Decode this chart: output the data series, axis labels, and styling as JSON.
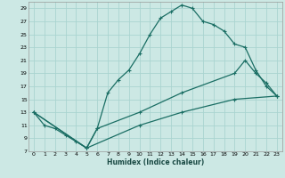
{
  "title": "",
  "xlabel": "Humidex (Indice chaleur)",
  "bg_color": "#cce8e4",
  "line_color": "#1a6e64",
  "grid_color": "#aad4d0",
  "xlim": [
    -0.5,
    23.5
  ],
  "ylim": [
    7,
    30
  ],
  "xticks": [
    0,
    1,
    2,
    3,
    4,
    5,
    6,
    7,
    8,
    9,
    10,
    11,
    12,
    13,
    14,
    15,
    16,
    17,
    18,
    19,
    20,
    21,
    22,
    23
  ],
  "yticks": [
    7,
    9,
    11,
    13,
    15,
    17,
    19,
    21,
    23,
    25,
    27,
    29
  ],
  "line1_x": [
    0,
    1,
    2,
    3,
    4,
    5,
    6,
    7,
    8,
    9,
    10,
    11,
    12,
    13,
    14,
    15,
    16,
    17,
    18,
    19,
    20,
    21,
    22,
    23
  ],
  "line1_y": [
    13,
    11,
    10.5,
    9.5,
    8.5,
    7.5,
    10.5,
    16,
    18,
    19.5,
    22,
    25,
    27.5,
    28.5,
    29.5,
    29,
    27,
    26.5,
    25.5,
    23.5,
    23,
    19.5,
    17,
    15.5
  ],
  "line2_x": [
    0,
    5,
    6,
    10,
    14,
    19,
    20,
    21,
    22,
    23
  ],
  "line2_y": [
    13,
    7.5,
    10.5,
    13,
    16,
    19,
    21,
    19,
    17.5,
    15.5
  ],
  "line3_x": [
    0,
    5,
    10,
    14,
    19,
    23
  ],
  "line3_y": [
    13,
    7.5,
    11,
    13,
    15,
    15.5
  ]
}
